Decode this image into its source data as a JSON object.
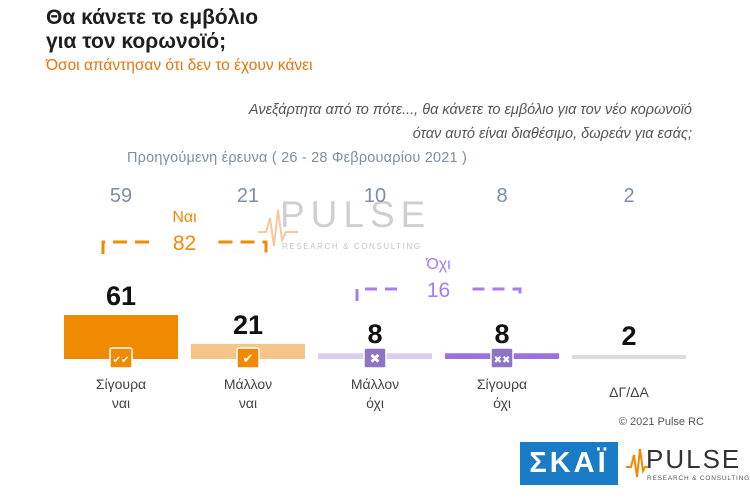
{
  "header": {
    "title_line1": "Θα κάνετε το εμβόλιο",
    "title_line2": "για τον κορωνοϊό;",
    "subtitle": "Όσοι απάντησαν ότι δεν το έχουν κάνει"
  },
  "question": {
    "line1": "Ανεξάρτητα από το πότε..., θα κάνετε το εμβόλιο για τον νέο κορωνοϊό",
    "line2": "όταν αυτό είναι διαθέσιμο, δωρεάν για εσάς;"
  },
  "previous_survey_label": "Προηγούμενη έρευνα  ( 26 - 28 Φεβρουαρίου  2021 )",
  "chart_data": {
    "type": "bar",
    "categories": [
      [
        "Σίγουρα",
        "ναι"
      ],
      [
        "Μάλλον",
        "ναι"
      ],
      [
        "Μάλλον",
        "όχι"
      ],
      [
        "Σίγουρα",
        "όχι"
      ],
      [
        "ΔΓ/ΔΑ"
      ]
    ],
    "values": [
      61,
      21,
      8,
      8,
      2
    ],
    "previous_values": [
      59,
      21,
      10,
      8,
      2
    ],
    "icons": [
      "double-check-icon",
      "check-icon",
      "x-icon",
      "double-x-icon",
      ""
    ],
    "colors": [
      "#f08a00",
      "#f5c48a",
      "#d9cdf0",
      "#9a72e0",
      "#dcdcdc"
    ],
    "groups": [
      {
        "label": "Ναι",
        "total": "82",
        "from": 0,
        "to": 1,
        "color": "#f08a00"
      },
      {
        "label": "Όχι",
        "total": "16",
        "from": 2,
        "to": 3,
        "color": "#a57df0"
      }
    ],
    "ylim": [
      0,
      100
    ]
  },
  "watermark": {
    "word": "PULSE",
    "tagline": "RESEARCH & CONSULTING"
  },
  "footer": {
    "copyright": "© 2021 Pulse RC",
    "skai_logo": "ΣΚΑΪ",
    "pulse_logo": "PULSE",
    "pulse_tagline": "RESEARCH & CONSULTING"
  }
}
